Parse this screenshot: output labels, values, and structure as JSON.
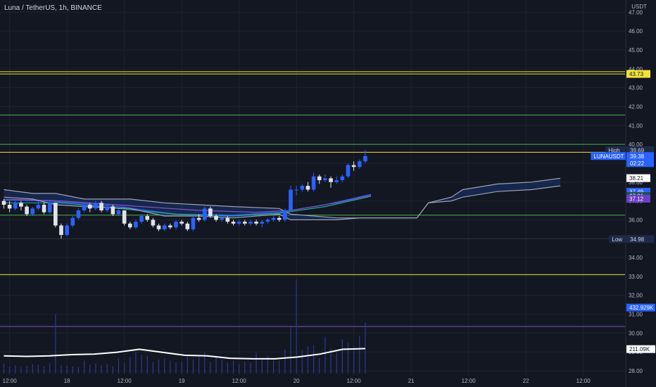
{
  "header": {
    "title": "Luna / TetherUS, 1h, BINANCE",
    "currency": "USDT"
  },
  "colors": {
    "background": "#131722",
    "grid": "#1e222d",
    "up": "#2962ff",
    "down": "#e1e3ea",
    "level_yellow": "#f2e33a",
    "level_green": "#4caf50",
    "level_purple": "#7e57c2",
    "cloud_fill": "#1c3370",
    "cloud_line": "#9ba3b5",
    "volume": "#2a3c8a",
    "volume_ma": "#ffffff"
  },
  "chart_data": {
    "type": "candlestick",
    "ylim": [
      27.85,
      47.35
    ],
    "y_ticks": [
      "47.00",
      "46.00",
      "45.00",
      "44.00",
      "43.00",
      "42.00",
      "41.00",
      "40.00",
      "39.00",
      "38.00",
      "37.00",
      "36.00",
      "35.00",
      "34.00",
      "33.00",
      "32.00",
      "31.00",
      "30.00",
      "29.00",
      "28.00"
    ],
    "x_labels": [
      {
        "t": 1,
        "label": "12:00"
      },
      {
        "t": 11,
        "label": "18"
      },
      {
        "t": 21,
        "label": "12:00"
      },
      {
        "t": 31,
        "label": "19"
      },
      {
        "t": 41,
        "label": "12:00"
      },
      {
        "t": 51,
        "label": "20"
      },
      {
        "t": 61,
        "label": "12:00"
      },
      {
        "t": 71,
        "label": "21"
      },
      {
        "t": 81,
        "label": "12:00"
      },
      {
        "t": 91,
        "label": "22"
      },
      {
        "t": 101,
        "label": "12:00"
      }
    ],
    "horizontal_lines": [
      {
        "value": 43.85,
        "color": "yellow"
      },
      {
        "value": 43.73,
        "color": "yellow"
      },
      {
        "value": 41.55,
        "color": "green"
      },
      {
        "value": 40.0,
        "color": "green"
      },
      {
        "value": 39.58,
        "color": "yellow"
      },
      {
        "value": 36.25,
        "color": "green"
      },
      {
        "value": 35.0,
        "color": "dark"
      },
      {
        "value": 33.1,
        "color": "yellow"
      },
      {
        "value": 30.35,
        "color": "purple"
      }
    ],
    "candles": [
      [
        37.0,
        36.8,
        37.1,
        36.6
      ],
      [
        36.8,
        36.6,
        37.0,
        36.4
      ],
      [
        36.6,
        36.9,
        37.0,
        36.5
      ],
      [
        36.9,
        36.7,
        37.0,
        36.5
      ],
      [
        36.7,
        36.3,
        36.8,
        36.2
      ],
      [
        36.3,
        36.6,
        36.7,
        36.2
      ],
      [
        36.6,
        36.8,
        37.0,
        36.5
      ],
      [
        36.8,
        36.4,
        36.9,
        36.3
      ],
      [
        36.4,
        36.9,
        37.0,
        36.3
      ],
      [
        36.9,
        35.7,
        36.9,
        35.6
      ],
      [
        35.7,
        35.2,
        35.8,
        35.0
      ],
      [
        35.2,
        35.7,
        35.8,
        35.1
      ],
      [
        35.7,
        36.1,
        36.2,
        35.6
      ],
      [
        36.1,
        36.5,
        36.6,
        36.0
      ],
      [
        36.5,
        36.8,
        36.9,
        36.4
      ],
      [
        36.8,
        36.6,
        36.9,
        36.4
      ],
      [
        36.6,
        36.9,
        37.0,
        36.5
      ],
      [
        36.9,
        36.5,
        37.0,
        36.4
      ],
      [
        36.5,
        36.7,
        36.8,
        36.4
      ],
      [
        36.7,
        36.3,
        36.8,
        36.2
      ],
      [
        36.3,
        36.5,
        36.6,
        36.2
      ],
      [
        36.5,
        35.8,
        36.5,
        35.7
      ],
      [
        35.8,
        35.6,
        35.9,
        35.5
      ],
      [
        35.6,
        35.9,
        36.0,
        35.5
      ],
      [
        35.9,
        36.2,
        36.3,
        35.8
      ],
      [
        36.2,
        36.0,
        36.3,
        35.9
      ],
      [
        36.0,
        35.7,
        36.1,
        35.6
      ],
      [
        35.7,
        35.5,
        35.8,
        35.4
      ],
      [
        35.5,
        35.7,
        35.8,
        35.4
      ],
      [
        35.7,
        35.6,
        35.8,
        35.5
      ],
      [
        35.6,
        35.9,
        36.0,
        35.5
      ],
      [
        35.9,
        35.8,
        36.0,
        35.7
      ],
      [
        35.8,
        35.5,
        35.9,
        35.4
      ],
      [
        35.5,
        36.1,
        36.2,
        35.4
      ],
      [
        36.1,
        36.0,
        36.3,
        35.9
      ],
      [
        36.0,
        36.6,
        36.7,
        35.9
      ],
      [
        36.6,
        36.2,
        36.7,
        36.1
      ],
      [
        36.2,
        36.0,
        36.3,
        35.9
      ],
      [
        36.0,
        36.1,
        36.2,
        35.9
      ],
      [
        36.1,
        35.9,
        36.2,
        35.8
      ],
      [
        35.9,
        35.8,
        36.0,
        35.7
      ],
      [
        35.8,
        35.9,
        36.0,
        35.7
      ],
      [
        35.9,
        35.8,
        36.0,
        35.7
      ],
      [
        35.8,
        35.9,
        36.0,
        35.7
      ],
      [
        35.9,
        35.8,
        36.0,
        35.7
      ],
      [
        35.8,
        35.9,
        36.0,
        35.6
      ],
      [
        35.9,
        36.0,
        36.1,
        35.8
      ],
      [
        36.0,
        36.1,
        36.2,
        35.9
      ],
      [
        36.1,
        36.0,
        36.2,
        35.9
      ],
      [
        36.0,
        36.5,
        36.6,
        35.9
      ],
      [
        36.5,
        37.6,
        37.8,
        36.5
      ],
      [
        37.6,
        37.6,
        37.8,
        37.3
      ],
      [
        37.6,
        37.8,
        37.9,
        37.5
      ],
      [
        37.8,
        37.6,
        38.0,
        37.5
      ],
      [
        37.6,
        38.3,
        38.5,
        37.5
      ],
      [
        38.3,
        38.1,
        38.4,
        37.9
      ],
      [
        38.1,
        38.2,
        38.4,
        38.0
      ],
      [
        38.2,
        38.0,
        38.3,
        37.7
      ],
      [
        38.0,
        38.1,
        38.3,
        37.9
      ],
      [
        38.1,
        38.3,
        38.4,
        38.0
      ],
      [
        38.3,
        38.9,
        39.0,
        38.2
      ],
      [
        38.9,
        38.8,
        39.1,
        38.6
      ],
      [
        38.8,
        39.1,
        39.2,
        38.7
      ],
      [
        39.1,
        39.38,
        39.69,
        39.0
      ]
    ],
    "plot_lines": [
      {
        "name": "ribbon_blue",
        "color": "#2962ff",
        "points": [
          [
            0,
            37.05
          ],
          [
            8,
            37.0
          ],
          [
            20,
            36.7
          ],
          [
            30,
            36.3
          ],
          [
            40,
            36.25
          ],
          [
            48,
            36.4
          ],
          [
            56,
            36.8
          ],
          [
            64,
            37.35
          ]
        ]
      },
      {
        "name": "ribbon_teal",
        "color": "#26a69a",
        "points": [
          [
            0,
            36.9
          ],
          [
            10,
            36.9
          ],
          [
            20,
            36.6
          ],
          [
            30,
            36.3
          ],
          [
            40,
            36.2
          ],
          [
            48,
            36.35
          ],
          [
            56,
            36.7
          ],
          [
            64,
            37.25
          ]
        ]
      },
      {
        "name": "ribbon_purple",
        "color": "#7e57c2",
        "points": [
          [
            0,
            37.1
          ],
          [
            10,
            37.0
          ],
          [
            24,
            36.7
          ],
          [
            34,
            36.5
          ],
          [
            44,
            36.4
          ],
          [
            50,
            36.5
          ],
          [
            58,
            36.9
          ],
          [
            64,
            37.3
          ]
        ]
      },
      {
        "name": "cloud_lower",
        "color": "#9ba3b5",
        "points": [
          [
            0,
            37.2
          ],
          [
            5,
            37.1
          ],
          [
            9,
            36.8
          ],
          [
            14,
            36.7
          ],
          [
            22,
            36.6
          ],
          [
            28,
            36.2
          ],
          [
            34,
            36.2
          ],
          [
            40,
            36.1
          ],
          [
            48,
            36.3
          ],
          [
            50,
            36.0
          ],
          [
            54,
            36.0
          ],
          [
            58,
            36.0
          ],
          [
            62,
            36.1
          ],
          [
            66,
            36.1
          ],
          [
            72,
            36.1
          ],
          [
            74,
            36.9
          ],
          [
            78,
            37.0
          ],
          [
            80,
            37.2
          ],
          [
            86,
            37.5
          ],
          [
            92,
            37.6
          ],
          [
            97,
            37.8
          ]
        ]
      },
      {
        "name": "cloud_upper",
        "color": "#9ba3b5",
        "points": [
          [
            0,
            37.6
          ],
          [
            5,
            37.4
          ],
          [
            9,
            37.4
          ],
          [
            14,
            37.1
          ],
          [
            22,
            37.1
          ],
          [
            28,
            36.9
          ],
          [
            34,
            36.8
          ],
          [
            40,
            36.7
          ],
          [
            48,
            36.6
          ],
          [
            50,
            36.3
          ],
          [
            54,
            36.2
          ],
          [
            58,
            36.1
          ],
          [
            62,
            36.1
          ],
          [
            66,
            36.1
          ],
          [
            72,
            36.1
          ],
          [
            74,
            36.9
          ],
          [
            78,
            37.2
          ],
          [
            80,
            37.6
          ],
          [
            86,
            37.9
          ],
          [
            92,
            38.0
          ],
          [
            97,
            38.2
          ]
        ]
      }
    ],
    "volume_scale_max": 795000,
    "volume": [
      85000,
      60000,
      70000,
      55000,
      65000,
      80000,
      75000,
      60000,
      90000,
      500000,
      70000,
      65000,
      60000,
      55000,
      110000,
      75000,
      85000,
      70000,
      80000,
      60000,
      130000,
      90000,
      140000,
      180000,
      160000,
      150000,
      100000,
      120000,
      130000,
      110000,
      95000,
      100000,
      150000,
      120000,
      140000,
      180000,
      100000,
      150000,
      120000,
      95000,
      110000,
      80000,
      100000,
      90000,
      175000,
      120000,
      150000,
      130000,
      110000,
      205000,
      390000,
      795000,
      200000,
      230000,
      240000,
      130000,
      310000,
      210000,
      180000,
      290000,
      260000,
      230000,
      320000,
      432929
    ],
    "volume_ma": [
      150000,
      145000,
      150000,
      160000,
      165000,
      180000,
      205000,
      180000,
      155000,
      150000,
      130000,
      125000,
      125000,
      140000,
      165000,
      205000,
      211090
    ],
    "price_tags": [
      {
        "value": 43.73,
        "label": "43.73",
        "bg": "#f2e33a",
        "fg": "#131722"
      },
      {
        "value": 39.69,
        "label": "High",
        "price": "39.69",
        "bg": "#1e2a48",
        "fg": "#d1d4dc"
      },
      {
        "value": 39.38,
        "label": "LUNAUSDT",
        "price": "39.38",
        "countdown": "02:22",
        "bg": "#2962ff",
        "fg": "#ffffff"
      },
      {
        "value": 38.21,
        "label": "38.21",
        "bg": "#ffffff",
        "fg": "#131722"
      },
      {
        "value": 37.49,
        "label": "37.49",
        "bg": "#2962ff",
        "fg": "#ffffff"
      },
      {
        "value": 37.26,
        "label": "37.26",
        "bg": "#1e4f4a",
        "fg": "#ffffff"
      },
      {
        "value": 37.12,
        "label": "37.12",
        "bg": "#6a3fc7",
        "fg": "#ffffff"
      },
      {
        "value": 34.98,
        "label": "Low",
        "price": "34.98",
        "bg": "#1e2a48",
        "fg": "#d1d4dc"
      },
      {
        "value": 31.35,
        "label": "432.929K",
        "bg": "#2962ff",
        "fg": "#ffffff"
      },
      {
        "value": 29.15,
        "label": "211.09K",
        "bg": "#ffffff",
        "fg": "#131722"
      }
    ]
  }
}
